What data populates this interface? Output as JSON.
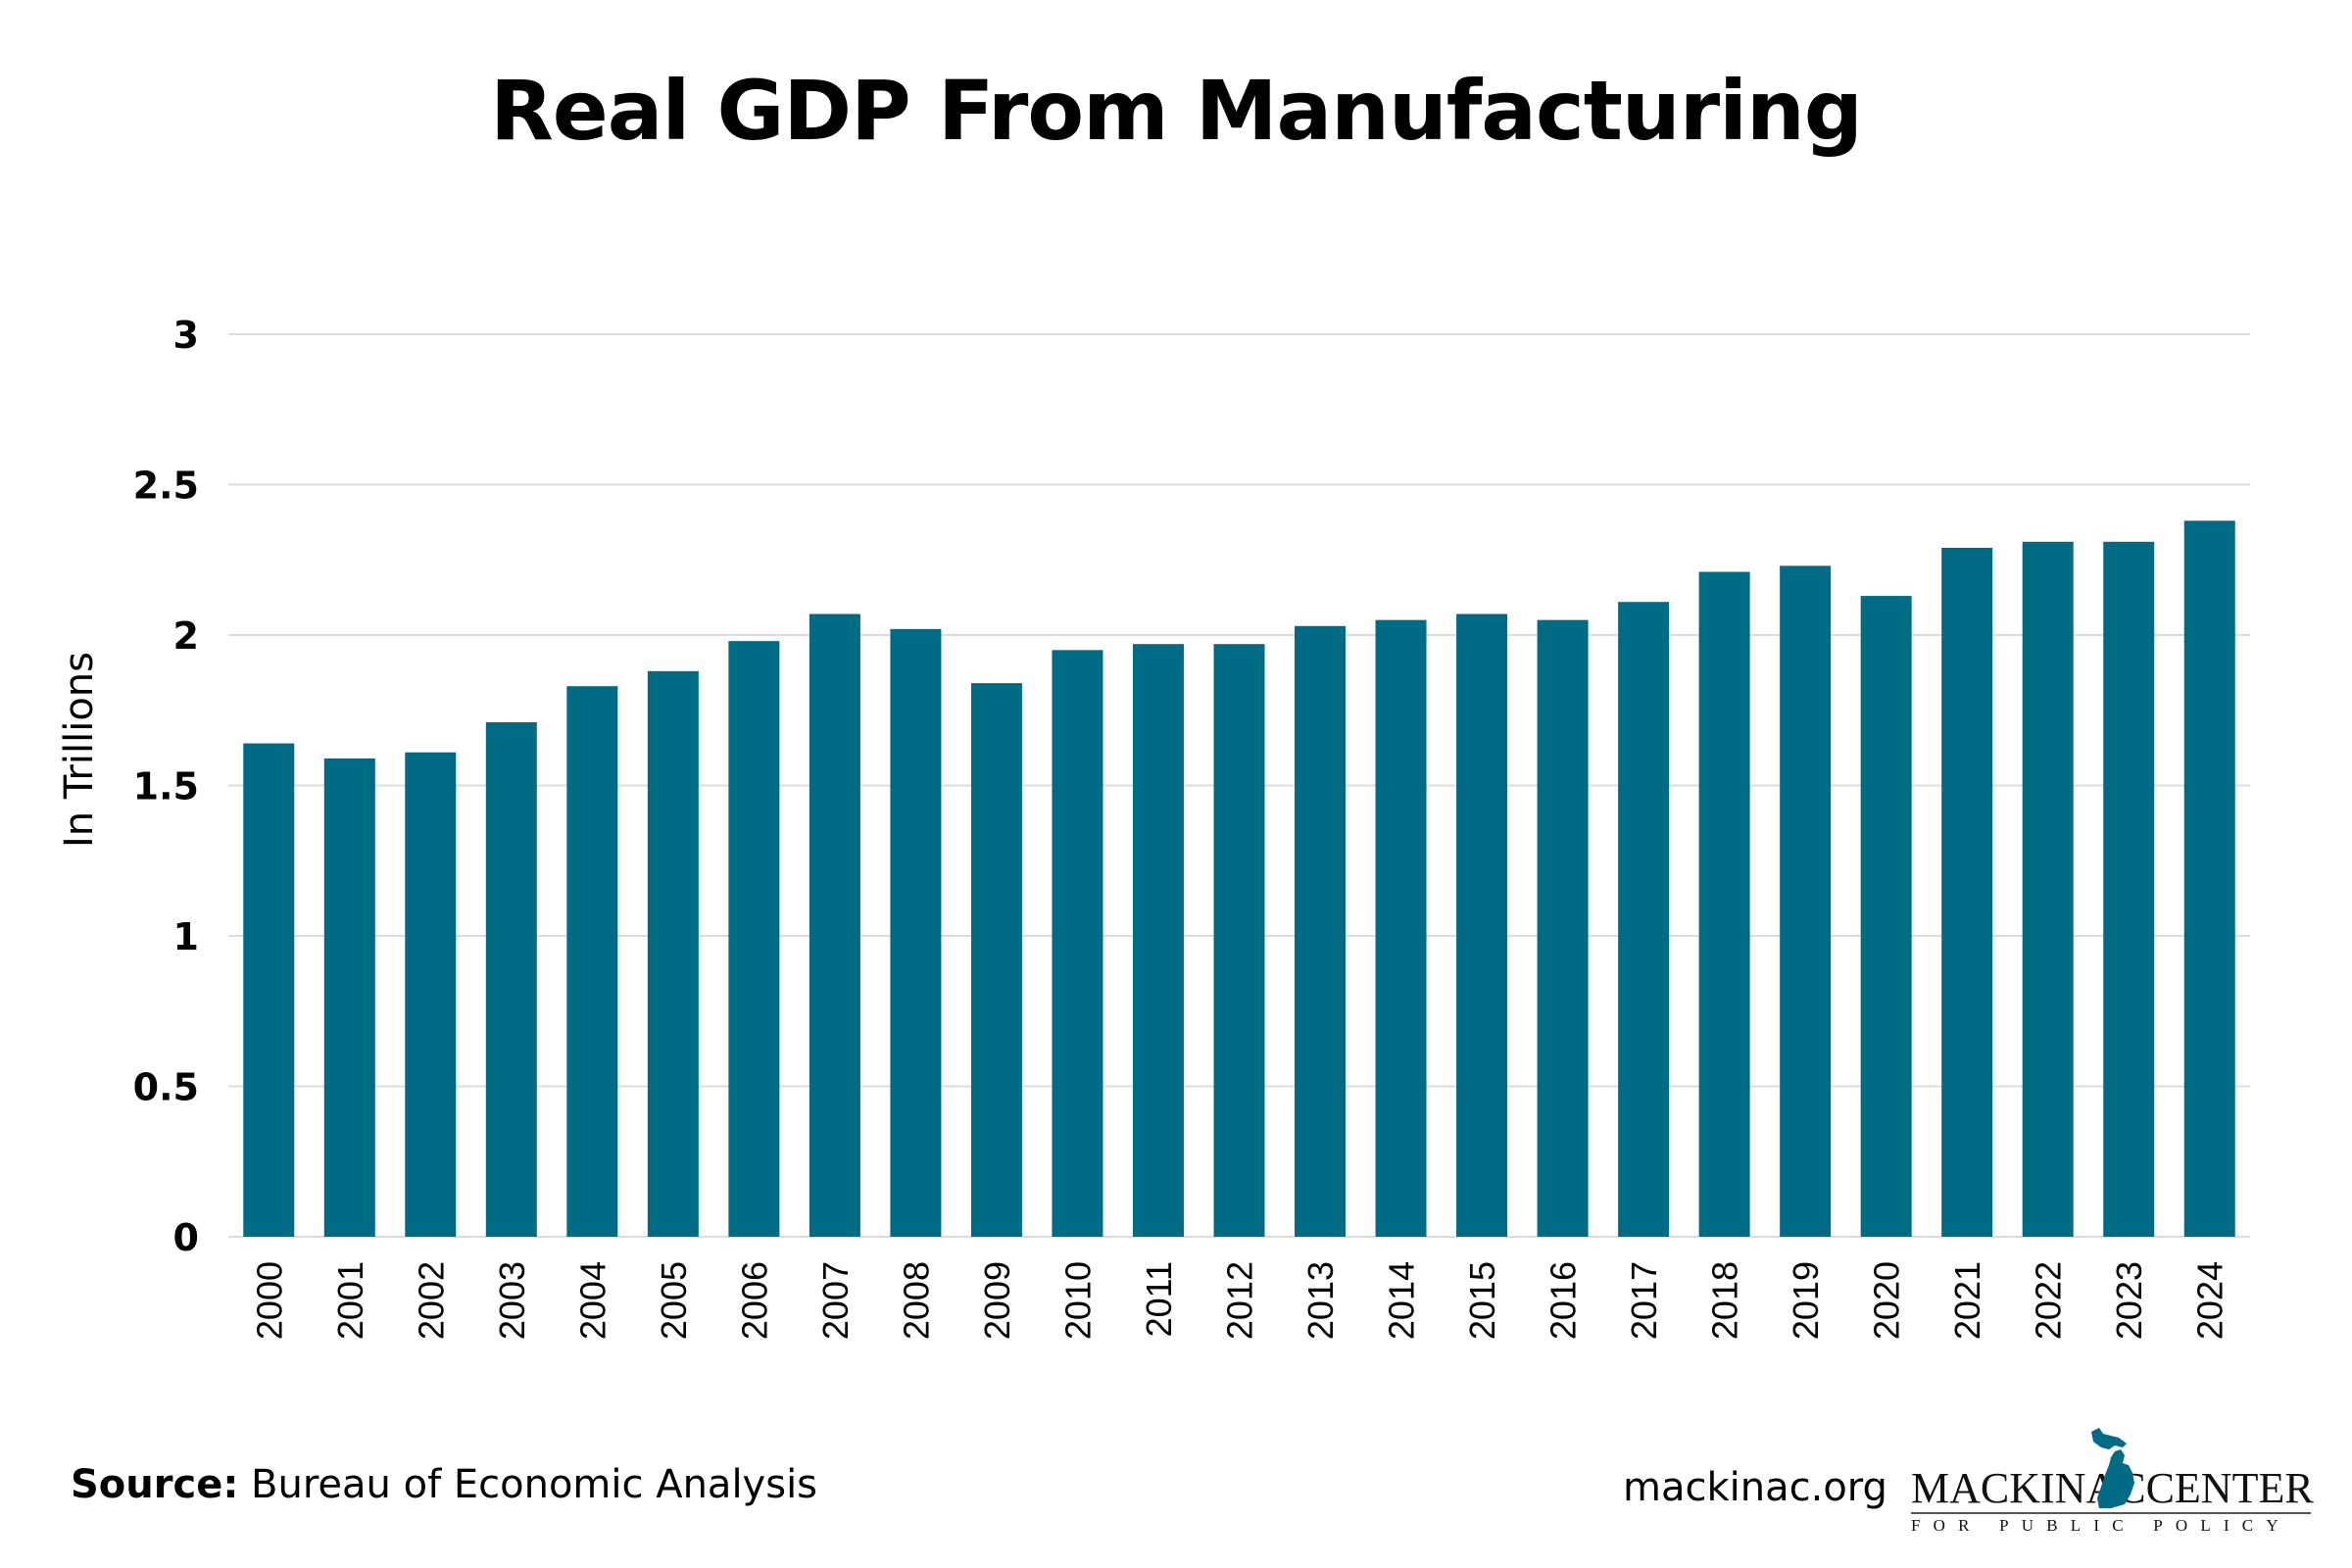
{
  "title": "Real GDP From Manufacturing",
  "footer": {
    "source_key": "Source:",
    "source_value": "Bureau of Economic Analysis",
    "site": "mackinac.org",
    "logo_left": "MACKINAC",
    "logo_right": "CENTER",
    "logo_sub": "FOR PUBLIC POLICY",
    "logo_icon": "michigan-map-icon"
  },
  "colors": {
    "bar": "#006B84",
    "grid": "#dcdcdc",
    "text": "#000000"
  },
  "chart_data": {
    "type": "bar",
    "title": "Real GDP From Manufacturing",
    "xlabel": "",
    "ylabel": "In Trillions",
    "ylim": [
      0,
      3
    ],
    "yticks": [
      0,
      0.5,
      1,
      1.5,
      2,
      2.5,
      3
    ],
    "ytick_labels": [
      "0",
      "0.5",
      "1",
      "1.5",
      "2",
      "2.5",
      "3"
    ],
    "grid": true,
    "x_label_rotation": "vertical",
    "categories": [
      "2000",
      "2001",
      "2002",
      "2003",
      "2004",
      "2005",
      "2006",
      "2007",
      "2008",
      "2009",
      "2010",
      "2011",
      "2012",
      "2013",
      "2014",
      "2015",
      "2016",
      "2017",
      "2018",
      "2019",
      "2020",
      "2021",
      "2022",
      "2023",
      "2024"
    ],
    "values": [
      1.64,
      1.59,
      1.61,
      1.71,
      1.83,
      1.88,
      1.98,
      2.07,
      2.02,
      1.84,
      1.95,
      1.97,
      1.97,
      2.03,
      2.05,
      2.07,
      2.05,
      2.11,
      2.21,
      2.23,
      2.13,
      2.29,
      2.31,
      2.31,
      2.38
    ],
    "source": "Bureau of Economic Analysis"
  }
}
